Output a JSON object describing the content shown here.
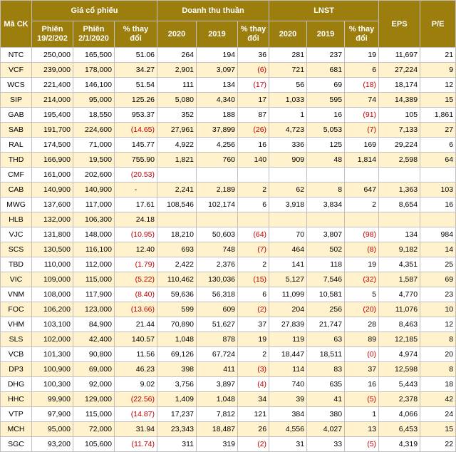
{
  "headers": {
    "ma_ck": "Mã CK",
    "gia": "Giá cổ phiếu",
    "doanh_thu": "Doanh thu thuần",
    "lnst": "LNST",
    "eps": "EPS",
    "pe": "P/E",
    "phien1": "Phiên 19/2/202",
    "phien2": "Phiên 2/1/2020",
    "pct": "% thay đổi",
    "y2020": "2020",
    "y2019": "2019",
    "pct_thay": "% thay đổi"
  },
  "rows": [
    {
      "ck": "NTC",
      "p1": "250,000",
      "p2": "165,500",
      "pct": "51.06",
      "dt20": "264",
      "dt19": "194",
      "dtp": "36",
      "ln20": "281",
      "ln19": "237",
      "lnp": "19",
      "eps": "11,697",
      "pe": "21"
    },
    {
      "ck": "VCF",
      "p1": "239,000",
      "p2": "178,000",
      "pct": "34.27",
      "dt20": "2,901",
      "dt19": "3,097",
      "dtp": "(6)",
      "ln20": "721",
      "ln19": "681",
      "lnp": "6",
      "eps": "27,224",
      "pe": "9"
    },
    {
      "ck": "WCS",
      "p1": "221,400",
      "p2": "146,100",
      "pct": "51.54",
      "dt20": "111",
      "dt19": "134",
      "dtp": "(17)",
      "ln20": "56",
      "ln19": "69",
      "lnp": "(18)",
      "eps": "18,174",
      "pe": "12"
    },
    {
      "ck": "SIP",
      "p1": "214,000",
      "p2": "95,000",
      "pct": "125.26",
      "dt20": "5,080",
      "dt19": "4,340",
      "dtp": "17",
      "ln20": "1,033",
      "ln19": "595",
      "lnp": "74",
      "eps": "14,389",
      "pe": "15"
    },
    {
      "ck": "GAB",
      "p1": "195,400",
      "p2": "18,550",
      "pct": "953.37",
      "dt20": "352",
      "dt19": "188",
      "dtp": "87",
      "ln20": "1",
      "ln19": "16",
      "lnp": "(91)",
      "eps": "105",
      "pe": "1,861"
    },
    {
      "ck": "SAB",
      "p1": "191,700",
      "p2": "224,600",
      "pct": "(14.65)",
      "dt20": "27,961",
      "dt19": "37,899",
      "dtp": "(26)",
      "ln20": "4,723",
      "ln19": "5,053",
      "lnp": "(7)",
      "eps": "7,133",
      "pe": "27"
    },
    {
      "ck": "RAL",
      "p1": "174,500",
      "p2": "71,000",
      "pct": "145.77",
      "dt20": "4,922",
      "dt19": "4,256",
      "dtp": "16",
      "ln20": "336",
      "ln19": "125",
      "lnp": "169",
      "eps": "29,224",
      "pe": "6"
    },
    {
      "ck": "THD",
      "p1": "166,900",
      "p2": "19,500",
      "pct": "755.90",
      "dt20": "1,821",
      "dt19": "760",
      "dtp": "140",
      "ln20": "909",
      "ln19": "48",
      "lnp": "1,814",
      "eps": "2,598",
      "pe": "64"
    },
    {
      "ck": "CMF",
      "p1": "161,000",
      "p2": "202,600",
      "pct": "(20.53)",
      "dt20": "",
      "dt19": "",
      "dtp": "",
      "ln20": "",
      "ln19": "",
      "lnp": "",
      "eps": "",
      "pe": ""
    },
    {
      "ck": "CAB",
      "p1": "140,900",
      "p2": "140,900",
      "pct": "-",
      "dt20": "2,241",
      "dt19": "2,189",
      "dtp": "2",
      "ln20": "62",
      "ln19": "8",
      "lnp": "647",
      "eps": "1,363",
      "pe": "103"
    },
    {
      "ck": "MWG",
      "p1": "137,600",
      "p2": "117,000",
      "pct": "17.61",
      "dt20": "108,546",
      "dt19": "102,174",
      "dtp": "6",
      "ln20": "3,918",
      "ln19": "3,834",
      "lnp": "2",
      "eps": "8,654",
      "pe": "16"
    },
    {
      "ck": "HLB",
      "p1": "132,000",
      "p2": "106,300",
      "pct": "24.18",
      "dt20": "",
      "dt19": "",
      "dtp": "",
      "ln20": "",
      "ln19": "",
      "lnp": "",
      "eps": "",
      "pe": ""
    },
    {
      "ck": "VJC",
      "p1": "131,800",
      "p2": "148,000",
      "pct": "(10.95)",
      "dt20": "18,210",
      "dt19": "50,603",
      "dtp": "(64)",
      "ln20": "70",
      "ln19": "3,807",
      "lnp": "(98)",
      "eps": "134",
      "pe": "984"
    },
    {
      "ck": "SCS",
      "p1": "130,500",
      "p2": "116,100",
      "pct": "12.40",
      "dt20": "693",
      "dt19": "748",
      "dtp": "(7)",
      "ln20": "464",
      "ln19": "502",
      "lnp": "(8)",
      "eps": "9,182",
      "pe": "14"
    },
    {
      "ck": "TBD",
      "p1": "110,000",
      "p2": "112,000",
      "pct": "(1.79)",
      "dt20": "2,422",
      "dt19": "2,376",
      "dtp": "2",
      "ln20": "141",
      "ln19": "118",
      "lnp": "19",
      "eps": "4,351",
      "pe": "25"
    },
    {
      "ck": "VIC",
      "p1": "109,000",
      "p2": "115,000",
      "pct": "(5.22)",
      "dt20": "110,462",
      "dt19": "130,036",
      "dtp": "(15)",
      "ln20": "5,127",
      "ln19": "7,546",
      "lnp": "(32)",
      "eps": "1,587",
      "pe": "69"
    },
    {
      "ck": "VNM",
      "p1": "108,000",
      "p2": "117,900",
      "pct": "(8.40)",
      "dt20": "59,636",
      "dt19": "56,318",
      "dtp": "6",
      "ln20": "11,099",
      "ln19": "10,581",
      "lnp": "5",
      "eps": "4,770",
      "pe": "23"
    },
    {
      "ck": "FOC",
      "p1": "106,200",
      "p2": "123,000",
      "pct": "(13.66)",
      "dt20": "599",
      "dt19": "609",
      "dtp": "(2)",
      "ln20": "204",
      "ln19": "256",
      "lnp": "(20)",
      "eps": "11,076",
      "pe": "10"
    },
    {
      "ck": "VHM",
      "p1": "103,100",
      "p2": "84,900",
      "pct": "21.44",
      "dt20": "70,890",
      "dt19": "51,627",
      "dtp": "37",
      "ln20": "27,839",
      "ln19": "21,747",
      "lnp": "28",
      "eps": "8,463",
      "pe": "12"
    },
    {
      "ck": "SLS",
      "p1": "102,000",
      "p2": "42,400",
      "pct": "140.57",
      "dt20": "1,048",
      "dt19": "878",
      "dtp": "19",
      "ln20": "119",
      "ln19": "63",
      "lnp": "89",
      "eps": "12,185",
      "pe": "8"
    },
    {
      "ck": "VCB",
      "p1": "101,300",
      "p2": "90,800",
      "pct": "11.56",
      "dt20": "69,126",
      "dt19": "67,724",
      "dtp": "2",
      "ln20": "18,447",
      "ln19": "18,511",
      "lnp": "(0)",
      "eps": "4,974",
      "pe": "20"
    },
    {
      "ck": "DP3",
      "p1": "100,900",
      "p2": "69,000",
      "pct": "46.23",
      "dt20": "398",
      "dt19": "411",
      "dtp": "(3)",
      "ln20": "114",
      "ln19": "83",
      "lnp": "37",
      "eps": "12,598",
      "pe": "8"
    },
    {
      "ck": "DHG",
      "p1": "100,300",
      "p2": "92,000",
      "pct": "9.02",
      "dt20": "3,756",
      "dt19": "3,897",
      "dtp": "(4)",
      "ln20": "740",
      "ln19": "635",
      "lnp": "16",
      "eps": "5,443",
      "pe": "18"
    },
    {
      "ck": "HHC",
      "p1": "99,900",
      "p2": "129,000",
      "pct": "(22.56)",
      "dt20": "1,409",
      "dt19": "1,048",
      "dtp": "34",
      "ln20": "39",
      "ln19": "41",
      "lnp": "(5)",
      "eps": "2,378",
      "pe": "42"
    },
    {
      "ck": "VTP",
      "p1": "97,900",
      "p2": "115,000",
      "pct": "(14.87)",
      "dt20": "17,237",
      "dt19": "7,812",
      "dtp": "121",
      "ln20": "384",
      "ln19": "380",
      "lnp": "1",
      "eps": "4,066",
      "pe": "24"
    },
    {
      "ck": "MCH",
      "p1": "95,000",
      "p2": "72,000",
      "pct": "31.94",
      "dt20": "23,343",
      "dt19": "18,487",
      "dtp": "26",
      "ln20": "4,556",
      "ln19": "4,027",
      "lnp": "13",
      "eps": "6,453",
      "pe": "15"
    },
    {
      "ck": "SGC",
      "p1": "93,200",
      "p2": "105,600",
      "pct": "(11.74)",
      "dt20": "311",
      "dt19": "319",
      "dtp": "(2)",
      "ln20": "31",
      "ln19": "33",
      "lnp": "(5)",
      "eps": "4,319",
      "pe": "22"
    }
  ]
}
